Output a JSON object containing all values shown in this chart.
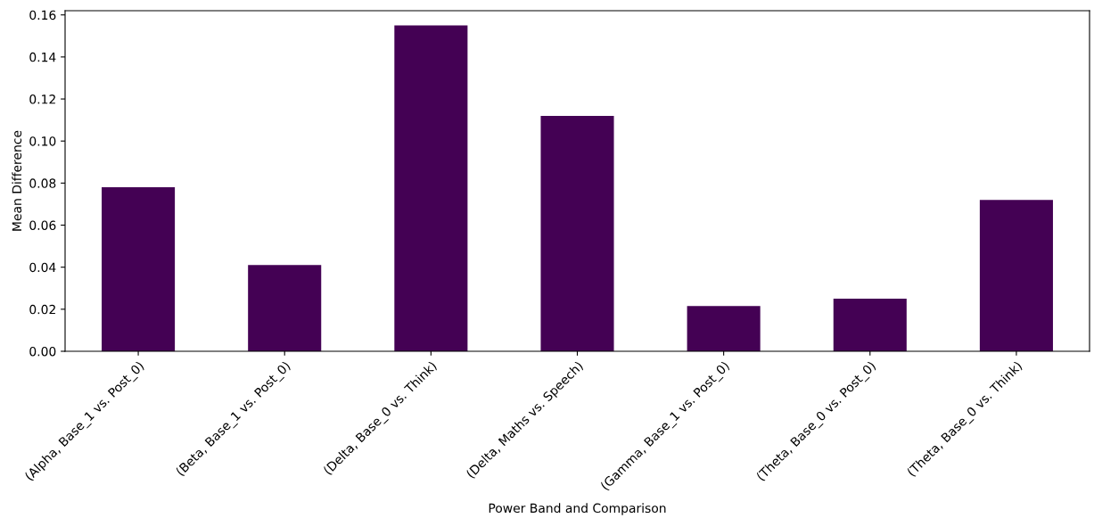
{
  "chart_data": {
    "type": "bar",
    "xlabel": "Power Band and Comparison",
    "ylabel": "Mean Difference",
    "categories": [
      "(Alpha, Base_1 vs. Post_0)",
      "(Beta, Base_1 vs. Post_0)",
      "(Delta, Base_0 vs. Think)",
      "(Delta, Maths vs. Speech)",
      "(Gamma, Base_1 vs. Post_0)",
      "(Theta, Base_0 vs. Post_0)",
      "(Theta, Base_0 vs. Think)"
    ],
    "values": [
      0.078,
      0.041,
      0.155,
      0.112,
      0.0215,
      0.025,
      0.072
    ],
    "color": "#440154",
    "ylim": [
      0,
      0.162
    ],
    "yticks": [
      {
        "value": 0,
        "label": "0.00"
      },
      {
        "value": 0.02,
        "label": "0.02"
      },
      {
        "value": 0.04,
        "label": "0.04"
      },
      {
        "value": 0.06,
        "label": "0.06"
      },
      {
        "value": 0.08,
        "label": "0.08"
      },
      {
        "value": 0.1,
        "label": "0.10"
      },
      {
        "value": 0.12,
        "label": "0.12"
      },
      {
        "value": 0.14,
        "label": "0.14"
      },
      {
        "value": 0.16,
        "label": "0.16"
      }
    ],
    "grid": false
  }
}
